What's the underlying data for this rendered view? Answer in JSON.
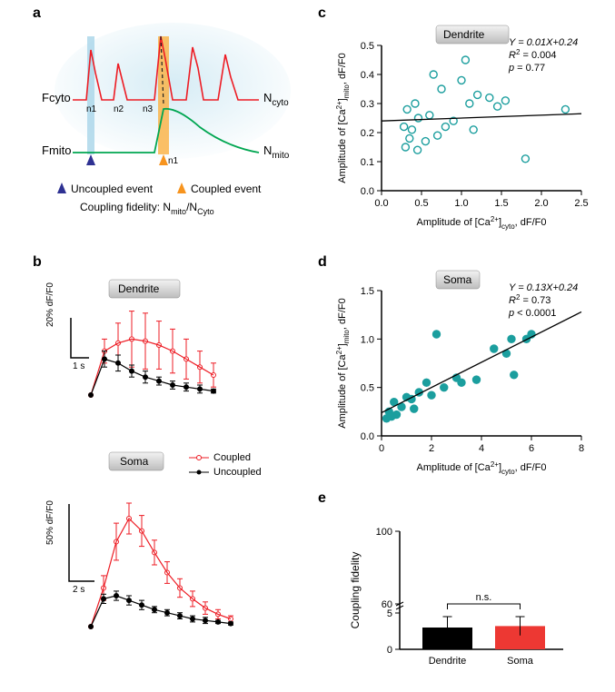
{
  "panel_a": {
    "label": "a",
    "fcyto_label": "Fcyto",
    "fmito_label": "Fmito",
    "ncyto_label": "N",
    "ncyto_sub": "cyto",
    "nmito_label": "N",
    "nmito_sub": "mito",
    "n1": "n1",
    "n2": "n2",
    "n3": "n3",
    "n1_mito": "n1",
    "uncoupled_label": "Uncoupled event",
    "coupled_label": "Coupled event",
    "fidelity_text1": "Coupling fidelity: N",
    "fidelity_sub1": "mito",
    "fidelity_text2": "/N",
    "fidelity_sub2": "Cyto",
    "cyto_color": "#ed1c24",
    "mito_color": "#00a651",
    "uncoupled_marker_color": "#2e3192",
    "coupled_marker_color": "#f7941e",
    "bg_gradient_start": "#d6ecf5",
    "bg_gradient_end": "#ffffff",
    "highlight_blue": "#a8d5e8",
    "highlight_orange": "#fbb040"
  },
  "panel_b": {
    "label": "b",
    "dendrite_badge": "Dendrite",
    "soma_badge": "Soma",
    "coupled_legend": "Coupled",
    "uncoupled_legend": "Uncoupled",
    "coupled_color": "#ed1c24",
    "uncoupled_color": "#000000",
    "dendrite_scale_y": "20% dF/F0",
    "dendrite_scale_x": "1 s",
    "soma_scale_y": "50% dF/F0",
    "soma_scale_x": "2 s",
    "dendrite_coupled_y": [
      0,
      22,
      26,
      28,
      27,
      25,
      22,
      18,
      14,
      10
    ],
    "dendrite_coupled_err": [
      0,
      6,
      10,
      14,
      14,
      12,
      11,
      10,
      8,
      6
    ],
    "dendrite_uncoupled_y": [
      0,
      18,
      16,
      12,
      9,
      7,
      5,
      4,
      3,
      2
    ],
    "dendrite_uncoupled_err": [
      0,
      4,
      4,
      3,
      3,
      2,
      2,
      2,
      2,
      1
    ],
    "soma_coupled_y": [
      0,
      25,
      55,
      70,
      62,
      48,
      35,
      25,
      18,
      12,
      8,
      5
    ],
    "soma_coupled_err": [
      0,
      8,
      12,
      10,
      10,
      8,
      7,
      6,
      5,
      4,
      3,
      2
    ],
    "soma_uncoupled_y": [
      0,
      18,
      20,
      17,
      14,
      11,
      9,
      7,
      5,
      4,
      3,
      2
    ],
    "soma_uncoupled_err": [
      0,
      3,
      3,
      3,
      3,
      2,
      2,
      2,
      2,
      2,
      1,
      1
    ]
  },
  "panel_c": {
    "label": "c",
    "badge": "Dendrite",
    "xlabel_1": "Amplitude of [Ca",
    "xlabel_sup": "2+",
    "xlabel_2": "]",
    "xlabel_sub": "cyto",
    "xlabel_3": ", dF/F0",
    "ylabel_1": "Amplitude of [Ca",
    "ylabel_sup": "2+",
    "ylabel_2": "]",
    "ylabel_sub": "mito",
    "ylabel_3": ", dF/F0",
    "eq": "Y = 0.01X+0.24",
    "r2_lbl": "R",
    "r2_sup": "2",
    "r2_val": " = 0.004",
    "p_lbl": "p",
    "p_val": " = 0.77",
    "xlim": [
      0,
      2.5
    ],
    "xticks": [
      0.0,
      0.5,
      1.0,
      1.5,
      2.0,
      2.5
    ],
    "ylim": [
      0,
      0.5
    ],
    "yticks": [
      0.0,
      0.1,
      0.2,
      0.3,
      0.4,
      0.5
    ],
    "point_color": "#1b9e9e",
    "point_fill": "none",
    "points": [
      [
        0.28,
        0.22
      ],
      [
        0.3,
        0.15
      ],
      [
        0.32,
        0.28
      ],
      [
        0.35,
        0.18
      ],
      [
        0.38,
        0.21
      ],
      [
        0.42,
        0.3
      ],
      [
        0.45,
        0.14
      ],
      [
        0.46,
        0.25
      ],
      [
        0.55,
        0.17
      ],
      [
        0.6,
        0.26
      ],
      [
        0.65,
        0.4
      ],
      [
        0.7,
        0.19
      ],
      [
        0.75,
        0.35
      ],
      [
        0.8,
        0.22
      ],
      [
        0.9,
        0.24
      ],
      [
        1.0,
        0.38
      ],
      [
        1.05,
        0.45
      ],
      [
        1.1,
        0.3
      ],
      [
        1.15,
        0.21
      ],
      [
        1.2,
        0.33
      ],
      [
        1.35,
        0.32
      ],
      [
        1.45,
        0.29
      ],
      [
        1.55,
        0.31
      ],
      [
        1.8,
        0.11
      ],
      [
        2.3,
        0.28
      ]
    ],
    "fit": {
      "slope": 0.01,
      "intercept": 0.24
    }
  },
  "panel_d": {
    "label": "d",
    "badge": "Soma",
    "eq": "Y = 0.13X+0.24",
    "r2_lbl": "R",
    "r2_sup": "2",
    "r2_val": " = 0.73",
    "p_lbl": "p",
    "p_val": " < 0.0001",
    "xlim": [
      0,
      8
    ],
    "xticks": [
      0,
      2,
      4,
      6,
      8
    ],
    "ylim": [
      0,
      1.5
    ],
    "yticks": [
      0.0,
      0.5,
      1.0,
      1.5
    ],
    "point_color": "#1b9e9e",
    "point_fill": "#1b9e9e",
    "points": [
      [
        0.2,
        0.18
      ],
      [
        0.3,
        0.25
      ],
      [
        0.4,
        0.2
      ],
      [
        0.5,
        0.35
      ],
      [
        0.6,
        0.22
      ],
      [
        0.8,
        0.3
      ],
      [
        1.0,
        0.4
      ],
      [
        1.2,
        0.38
      ],
      [
        1.3,
        0.28
      ],
      [
        1.5,
        0.45
      ],
      [
        1.8,
        0.55
      ],
      [
        2.0,
        0.42
      ],
      [
        2.2,
        1.05
      ],
      [
        2.5,
        0.5
      ],
      [
        3.0,
        0.6
      ],
      [
        3.2,
        0.55
      ],
      [
        3.8,
        0.58
      ],
      [
        4.5,
        0.9
      ],
      [
        5.0,
        0.85
      ],
      [
        5.2,
        1.0
      ],
      [
        5.3,
        0.63
      ],
      [
        5.8,
        1.0
      ],
      [
        6.0,
        1.05
      ]
    ],
    "fit": {
      "slope": 0.13,
      "intercept": 0.24
    }
  },
  "panel_e": {
    "label": "e",
    "ylabel": "Coupling fidelity",
    "ns_label": "n.s.",
    "ylim": [
      0,
      100
    ],
    "yticks": [
      0,
      5,
      60,
      100
    ],
    "bars": [
      {
        "label": "Dendrite",
        "value": 3.0,
        "err": 1.5,
        "color": "#000000"
      },
      {
        "label": "Soma",
        "value": 3.2,
        "err": 1.3,
        "color": "#ed3833"
      }
    ]
  }
}
